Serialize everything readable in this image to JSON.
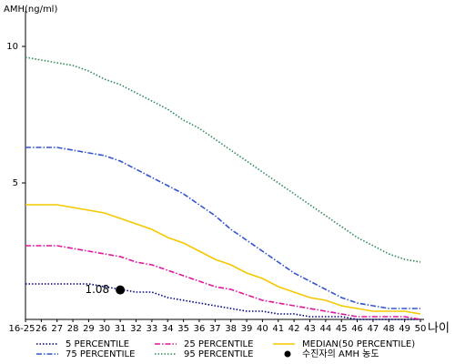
{
  "chart_data": {
    "type": "line",
    "y_label": "AMH(ng/ml)",
    "x_label": "나이",
    "categories": [
      "16-25",
      "26",
      "27",
      "28",
      "29",
      "30",
      "31",
      "32",
      "33",
      "34",
      "35",
      "36",
      "37",
      "38",
      "39",
      "40",
      "41",
      "42",
      "43",
      "44",
      "45",
      "46",
      "47",
      "48",
      "49",
      "50"
    ],
    "ylim": [
      0,
      11.3
    ],
    "yticks": [
      5,
      10
    ],
    "series": [
      {
        "name": "5 PERCENTILE",
        "color": "#000080",
        "style": "dotted",
        "values": [
          1.3,
          1.3,
          1.3,
          1.3,
          1.3,
          1.2,
          1.1,
          1.0,
          1.0,
          0.8,
          0.7,
          0.6,
          0.5,
          0.4,
          0.3,
          0.3,
          0.2,
          0.2,
          0.1,
          0.1,
          0.1,
          0.0,
          0.0,
          0.0,
          0.0,
          0.0
        ]
      },
      {
        "name": "75 PERCENTILE",
        "color": "#3355cc",
        "style": "dashdot",
        "values": [
          6.3,
          6.3,
          6.3,
          6.2,
          6.1,
          6.0,
          5.8,
          5.5,
          5.2,
          4.9,
          4.6,
          4.2,
          3.8,
          3.3,
          2.9,
          2.5,
          2.1,
          1.7,
          1.4,
          1.1,
          0.8,
          0.6,
          0.5,
          0.4,
          0.4,
          0.4
        ]
      },
      {
        "name": "25 PERCENTILE",
        "color": "#e0169b",
        "style": "dashdot",
        "values": [
          2.7,
          2.7,
          2.7,
          2.6,
          2.5,
          2.4,
          2.3,
          2.1,
          2.0,
          1.8,
          1.6,
          1.4,
          1.2,
          1.1,
          0.9,
          0.7,
          0.6,
          0.5,
          0.4,
          0.3,
          0.2,
          0.1,
          0.1,
          0.1,
          0.1,
          0.0
        ]
      },
      {
        "name": "95 PERCENTILE",
        "color": "#2e8b57",
        "style": "dotted",
        "values": [
          9.6,
          9.5,
          9.4,
          9.3,
          9.1,
          8.8,
          8.6,
          8.3,
          8.0,
          7.7,
          7.3,
          7.0,
          6.6,
          6.2,
          5.8,
          5.4,
          5.0,
          4.6,
          4.2,
          3.8,
          3.4,
          3.0,
          2.7,
          2.4,
          2.2,
          2.1
        ]
      },
      {
        "name": "MEDIAN(50 PERCENTILE)",
        "color": "#f5c800",
        "style": "solid",
        "values": [
          4.2,
          4.2,
          4.2,
          4.1,
          4.0,
          3.9,
          3.7,
          3.5,
          3.3,
          3.0,
          2.8,
          2.5,
          2.2,
          2.0,
          1.7,
          1.5,
          1.2,
          1.0,
          0.8,
          0.7,
          0.5,
          0.4,
          0.3,
          0.3,
          0.3,
          0.2
        ]
      }
    ],
    "point": {
      "name": "수진자의 AMH 농도",
      "category": "31",
      "value": 1.08,
      "color": "#000000"
    }
  }
}
